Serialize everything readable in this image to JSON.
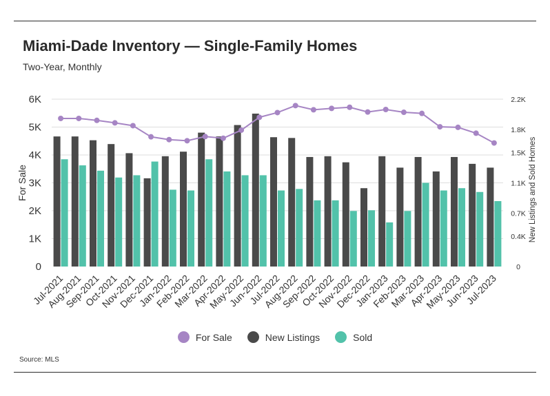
{
  "header": {
    "title": "Miami-Dade Inventory — Single-Family Homes",
    "subtitle": "Two-Year, Monthly"
  },
  "footer": {
    "source": "Source: MLS"
  },
  "colors": {
    "for_sale": "#a685c4",
    "new_listings": "#4a4a4a",
    "sold": "#52c2aa",
    "grid": "#dddddd",
    "axis_text": "#333333"
  },
  "chart_data": {
    "type": "bar",
    "categories": [
      "Jul-2021",
      "Aug-2021",
      "Sep-2021",
      "Oct-2021",
      "Nov-2021",
      "Dec-2021",
      "Jan-2022",
      "Feb-2022",
      "Mar-2022",
      "Apr-2022",
      "May-2022",
      "Jun-2022",
      "Jul-2022",
      "Aug-2022",
      "Sep-2022",
      "Oct-2022",
      "Nov-2022",
      "Dec-2022",
      "Jan-2023",
      "Feb-2023",
      "Mar-2023",
      "Apr-2023",
      "May-2023",
      "Jun-2023",
      "Jul-2023"
    ],
    "series": [
      {
        "name": "For Sale",
        "type": "line",
        "axis": "left",
        "values": [
          5310,
          5310,
          5240,
          5150,
          5050,
          4650,
          4550,
          4510,
          4660,
          4600,
          4890,
          5350,
          5520,
          5770,
          5620,
          5670,
          5710,
          5540,
          5630,
          5530,
          5490,
          5010,
          4990,
          4780,
          4430
        ]
      },
      {
        "name": "New Listings",
        "type": "bar",
        "axis": "right",
        "values": [
          1710,
          1710,
          1660,
          1610,
          1490,
          1160,
          1450,
          1510,
          1760,
          1710,
          1860,
          2010,
          1700,
          1690,
          1440,
          1450,
          1370,
          1030,
          1450,
          1300,
          1440,
          1250,
          1440,
          1350,
          1300
        ]
      },
      {
        "name": "Sold",
        "type": "bar",
        "axis": "right",
        "values": [
          1410,
          1330,
          1260,
          1170,
          1200,
          1380,
          1010,
          1000,
          1410,
          1250,
          1200,
          1200,
          1000,
          1020,
          870,
          870,
          730,
          740,
          580,
          730,
          1100,
          1000,
          1030,
          980,
          860
        ]
      }
    ],
    "y_left": {
      "label": "For Sale",
      "range": [
        0,
        6000
      ],
      "ticks": [
        0,
        1000,
        2000,
        3000,
        4000,
        5000,
        6000
      ],
      "tick_labels": [
        "0",
        "1K",
        "2K",
        "3K",
        "4K",
        "5K",
        "6K"
      ]
    },
    "y_right": {
      "label": "New Listings and Sold Homes",
      "range": [
        0,
        2200
      ],
      "ticks": [
        0,
        400,
        700,
        1100,
        1500,
        1800,
        2200
      ],
      "tick_labels": [
        "0",
        "0.4K",
        "0.7K",
        "1.1K",
        "1.5K",
        "1.8K",
        "2.2K"
      ]
    },
    "grid": true,
    "legend": {
      "position": "bottom",
      "entries": [
        "For Sale",
        "New Listings",
        "Sold"
      ]
    }
  }
}
